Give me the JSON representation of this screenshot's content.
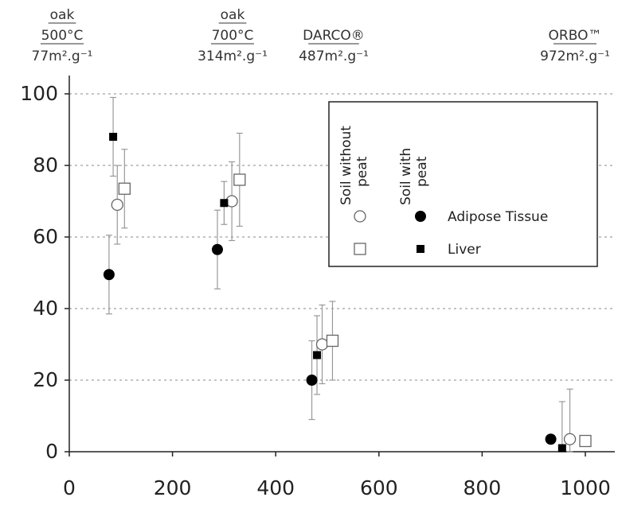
{
  "chart_data": {
    "type": "scatter",
    "xlim": [
      0,
      1050
    ],
    "ylim": [
      0,
      100
    ],
    "x_ticks": [
      0,
      200,
      400,
      600,
      800,
      1000
    ],
    "y_ticks": [
      0,
      20,
      40,
      60,
      80,
      100
    ],
    "grid": "horizontal dashed at y ticks",
    "top_labels": [
      {
        "x": 77,
        "lines": [
          "oak",
          "500°C",
          "77m².g⁻¹"
        ]
      },
      {
        "x": 314,
        "lines": [
          "oak",
          "700°C",
          "314m².g⁻¹"
        ]
      },
      {
        "x": 487,
        "lines": [
          "DARCO®",
          "487m².g⁻¹"
        ]
      },
      {
        "x": 972,
        "lines": [
          "ORBO™",
          "972m².g⁻¹"
        ]
      }
    ],
    "legend": {
      "position": "top-right",
      "column_headers": [
        "Soil without peat",
        "Soil with peat"
      ],
      "rows": [
        "Adipose Tissue",
        "Liver"
      ]
    },
    "series": [
      {
        "name": "Adipose Tissue",
        "soil": "Soil without peat",
        "marker": "open-circle",
        "points": [
          {
            "x": 93,
            "y": 69,
            "err": 11
          },
          {
            "x": 315,
            "y": 70,
            "err": 11
          },
          {
            "x": 490,
            "y": 30,
            "err": 11
          },
          {
            "x": 970,
            "y": 3.5,
            "err": 14
          }
        ]
      },
      {
        "name": "Adipose Tissue",
        "soil": "Soil with peat",
        "marker": "filled-circle",
        "points": [
          {
            "x": 77,
            "y": 49.5,
            "err": 11
          },
          {
            "x": 287,
            "y": 56.5,
            "err": 11
          },
          {
            "x": 470,
            "y": 20,
            "err": 11
          },
          {
            "x": 933,
            "y": 3.5,
            "err": 0
          }
        ]
      },
      {
        "name": "Liver",
        "soil": "Soil without peat",
        "marker": "open-square",
        "points": [
          {
            "x": 107,
            "y": 73.5,
            "err": 11
          },
          {
            "x": 330,
            "y": 76,
            "err": 13
          },
          {
            "x": 510,
            "y": 31,
            "err": 11
          },
          {
            "x": 1000,
            "y": 3,
            "err": 0
          }
        ]
      },
      {
        "name": "Liver",
        "soil": "Soil with peat",
        "marker": "filled-square",
        "points": [
          {
            "x": 85,
            "y": 88,
            "err": 11
          },
          {
            "x": 300,
            "y": 69.5,
            "err": 6
          },
          {
            "x": 480,
            "y": 27,
            "err": 11
          },
          {
            "x": 955,
            "y": 1,
            "err": 13
          }
        ]
      }
    ]
  }
}
